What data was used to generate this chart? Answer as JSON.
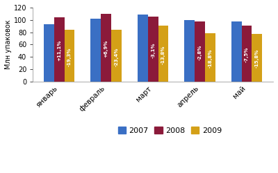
{
  "categories": [
    "январь",
    "февраль",
    "март",
    "апрель",
    "май"
  ],
  "values_2007": [
    93,
    102,
    109,
    100,
    98
  ],
  "values_2008": [
    104,
    110,
    105,
    97,
    91
  ],
  "values_2009": [
    84,
    84,
    91,
    78,
    77
  ],
  "colors": [
    "#3a6fc4",
    "#8b1a3a",
    "#d4a017"
  ],
  "labels_2008": [
    "+11,1%",
    "+6,9%",
    "-3,1%",
    "-2,8%",
    "-7,5%"
  ],
  "labels_2009": [
    "-19,3%",
    "-23,4%",
    "-13,8%",
    "-18,8%",
    "-15,8%"
  ],
  "ylabel": "Млн упаковок",
  "ylim": [
    0,
    120
  ],
  "yticks": [
    0,
    20,
    40,
    60,
    80,
    100,
    120
  ],
  "legend_labels": [
    "2007",
    "2008",
    "2009"
  ],
  "bar_width": 0.22
}
